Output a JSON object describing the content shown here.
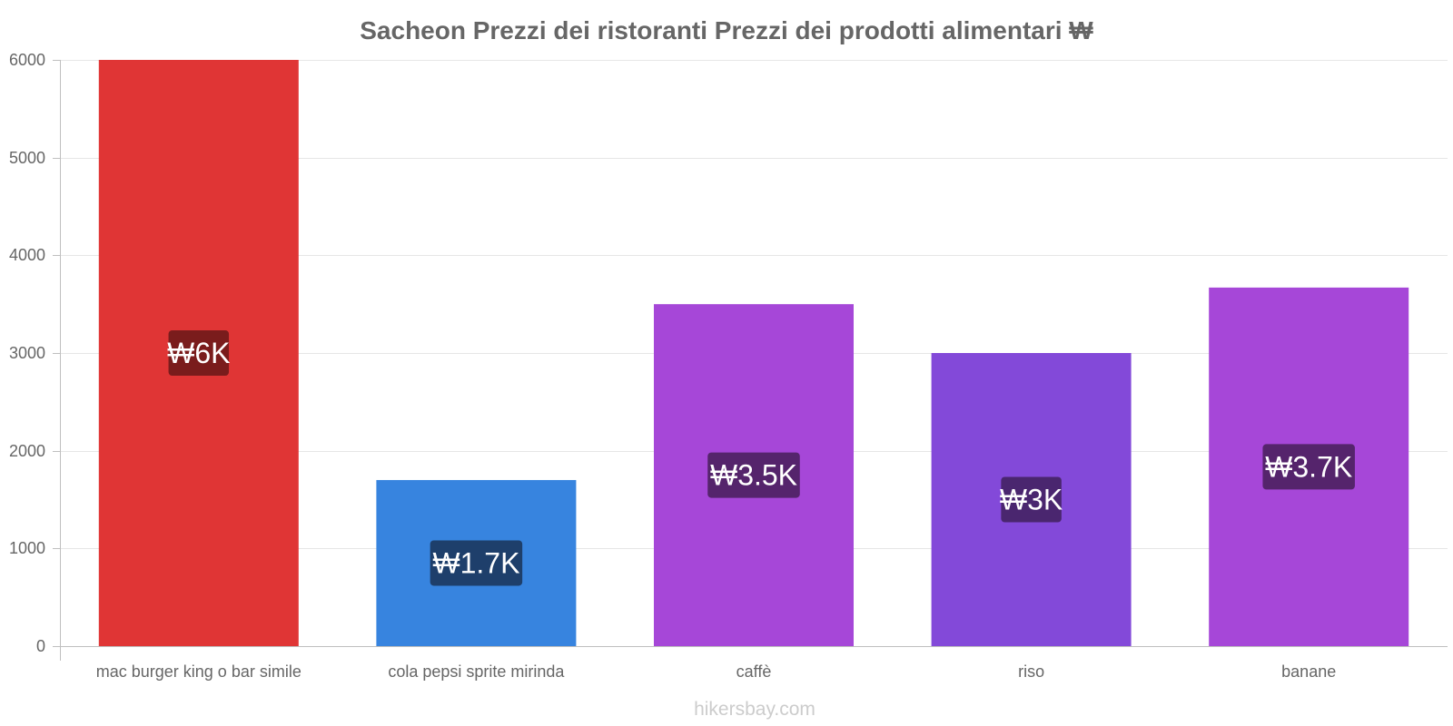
{
  "chart_data": {
    "type": "bar",
    "title": "Sacheon Prezzi dei ristoranti Prezzi dei prodotti alimentari ₩",
    "categories": [
      "mac burger king o bar simile",
      "cola pepsi sprite mirinda",
      "caffè",
      "riso",
      "banane"
    ],
    "values": [
      6000,
      1700,
      3500,
      3000,
      3670
    ],
    "value_labels": [
      "₩6K",
      "₩1.7K",
      "₩3.5K",
      "₩3K",
      "₩3.7K"
    ],
    "bar_colors": [
      "#e03535",
      "#3784df",
      "#a647d8",
      "#8349d9",
      "#a647d8"
    ],
    "label_bg_colors": [
      "#7a1c1c",
      "#1e3f6b",
      "#55246c",
      "#4a266f",
      "#55246c"
    ],
    "ylim": [
      0,
      6000
    ],
    "yticks": [
      0,
      1000,
      2000,
      3000,
      4000,
      5000,
      6000
    ],
    "xlabel": "",
    "ylabel": "",
    "grid": true
  },
  "watermark": "hikersbay.com",
  "colors": {
    "grid": "#e6e6e6",
    "axis": "#bfbfbf",
    "text": "#666666"
  }
}
